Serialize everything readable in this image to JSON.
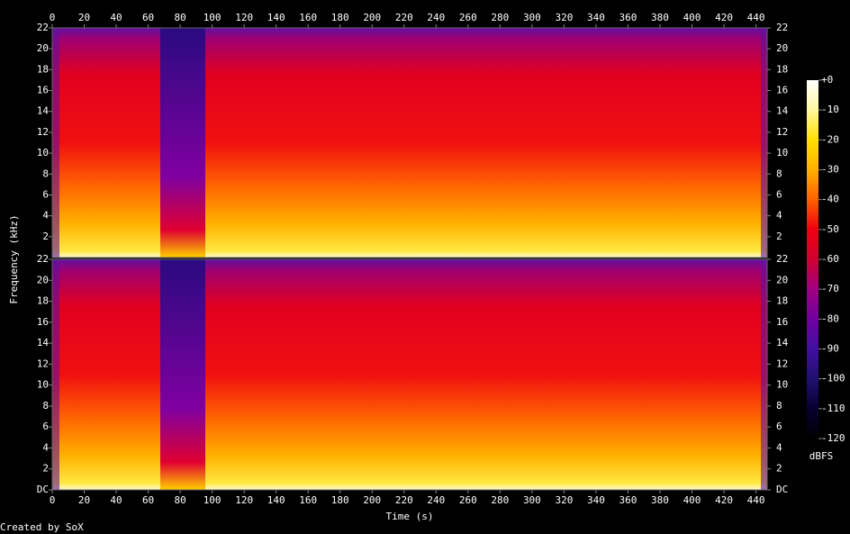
{
  "chart_data": {
    "type": "spectrogram",
    "x_label": "Time (s)",
    "y_label": "Frequency (kHz)",
    "credit": "Created by SoX",
    "xlim": [
      0,
      447
    ],
    "xticks": [
      0,
      20,
      40,
      60,
      80,
      100,
      120,
      140,
      160,
      180,
      200,
      220,
      240,
      260,
      280,
      300,
      320,
      340,
      360,
      380,
      400,
      420,
      440
    ],
    "channels": [
      {
        "ylim": [
          0,
          22
        ],
        "yticks": [
          2,
          4,
          6,
          8,
          10,
          12,
          14,
          16,
          18,
          20,
          22
        ]
      },
      {
        "ylim": [
          0,
          22
        ],
        "yticks": [
          {
            "value": 0,
            "label": "DC"
          },
          2,
          4,
          6,
          8,
          10,
          12,
          14,
          16,
          18,
          20,
          22
        ]
      }
    ],
    "colorbar": {
      "label": "dBFS",
      "lim": [
        -120,
        0
      ],
      "ticks": [
        {
          "value": 0,
          "label": "+0"
        },
        -10,
        -20,
        -30,
        -40,
        -50,
        -60,
        -70,
        -80,
        -90,
        -100,
        -110,
        -120
      ]
    }
  }
}
